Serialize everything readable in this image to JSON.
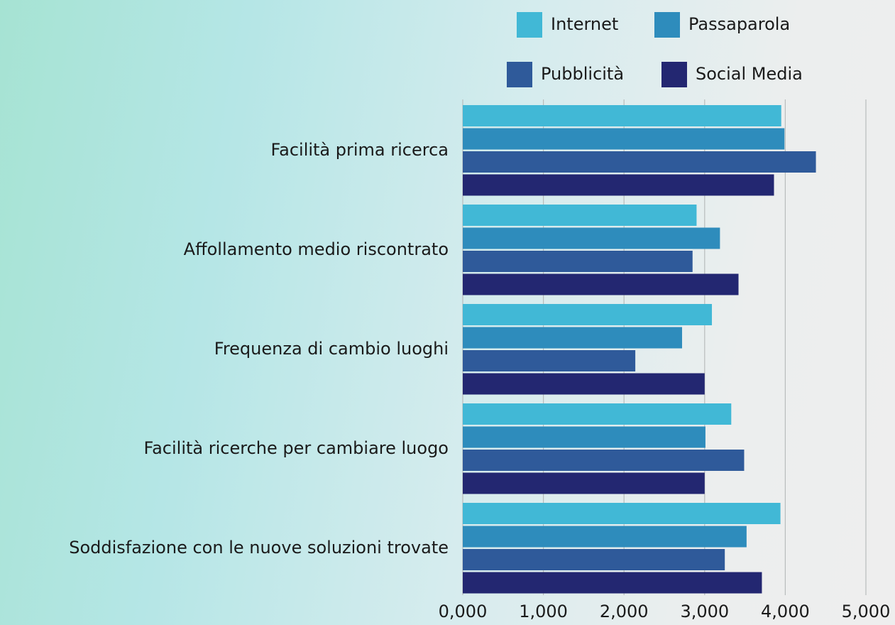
{
  "chart_data": {
    "type": "barh",
    "categories": [
      "Facilità prima ricerca",
      "Affollamento medio riscontrato",
      "Frequenza di cambio luoghi",
      "Facilità ricerche per cambiare luogo",
      "Soddisfazione con le nuove soluzioni trovate"
    ],
    "series": [
      {
        "name": "Internet",
        "color": "#41b8d6",
        "values": [
          3.95,
          2.9,
          3.09,
          3.33,
          3.94
        ]
      },
      {
        "name": "Passaparola",
        "color": "#2e8cbc",
        "values": [
          3.99,
          3.19,
          2.72,
          3.01,
          3.52
        ]
      },
      {
        "name": "Pubblicità",
        "color": "#2f5a9a",
        "values": [
          4.38,
          2.85,
          2.14,
          3.49,
          3.25
        ]
      },
      {
        "name": "Social Media",
        "color": "#232771",
        "values": [
          3.86,
          3.42,
          3.0,
          3.0,
          3.71
        ]
      }
    ],
    "xlim": [
      0,
      5
    ],
    "xticks": [
      {
        "value": 0,
        "label": "0,000"
      },
      {
        "value": 1,
        "label": "1,000"
      },
      {
        "value": 2,
        "label": "2,000"
      },
      {
        "value": 3,
        "label": "3,000"
      },
      {
        "value": 4,
        "label": "4,000"
      },
      {
        "value": 5,
        "label": "5,000"
      }
    ],
    "grid": true,
    "legend": "top-right"
  }
}
